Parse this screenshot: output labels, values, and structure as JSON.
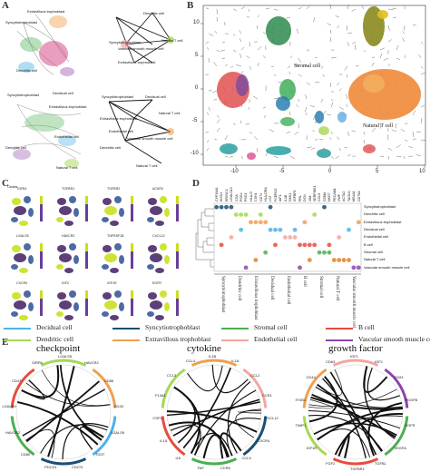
{
  "panels": {
    "A": "A",
    "B": "B",
    "C": "C",
    "D": "D",
    "E": "E"
  },
  "panel_a": {
    "net1": [
      "Extravillous trophoblast",
      "Syncytiotrophoblast",
      "Dendritic cell"
    ],
    "net2": [
      "Dendritic cell",
      "Syncytiotrophoblast",
      "Vascular smooth muscle cell",
      "Extravillous trophoblast",
      "Natural T cell"
    ],
    "net3": [
      "Syncytiotrophoblast",
      "Decidual cell",
      "Extravillous trophoblast",
      "Endothelial cell",
      "Dendritic cell",
      "Natural T cell"
    ],
    "net4": [
      "Syncytiotrophoblast",
      "Decidual cell",
      "Extravillous trophoblast",
      "Natural T cell",
      "Endothelial cell",
      "Vascular smooth muscle cell",
      "Dendritic cell",
      "Natural T cell"
    ]
  },
  "panel_b": {
    "label_stromal": "Stromal cell",
    "label_natural_t": "Natural T cell",
    "x_ticks": [
      "-10",
      "-5",
      "0",
      "5",
      "10"
    ],
    "y_ticks": [
      "10",
      "5",
      "0",
      "-5",
      "-10"
    ]
  },
  "panel_c": {
    "legend_title": "Cluster",
    "genes": [
      "TGFB1",
      "TGFBR1",
      "TGFBR2",
      "ACKR2",
      "LGALS9",
      "HAVCR2",
      "TNFRSF1B",
      "CXCL12",
      "CXCR4",
      "IGF2",
      "IGF1R",
      "EGFR"
    ]
  },
  "panel_d": {
    "columns": [
      "CYP19A1",
      "KISS1",
      "ERVW-1",
      "LGALS13",
      "CGA",
      "PSG4",
      "PSG1",
      "HLA-G",
      "CSH1",
      "CD74",
      "HLA-DRA",
      "LYZ",
      "FCER1G",
      "AIF1",
      "IL1B",
      "DKK1",
      "IGFBP1",
      "PRL",
      "DCN",
      "VIM",
      "SERPINE1",
      "CCL5",
      "GZMA",
      "NKG7",
      "PECAM1",
      "VWF",
      "ACTA2",
      "TAGLN",
      "MS4A1",
      "CD79A"
    ],
    "rows": [
      "Syncytiotrophoblast",
      "Dendritic cell",
      "Extravillous trophoblast",
      "Decidual cell",
      "Endothelial cell",
      "B cell",
      "Stromal cell",
      "Natural T cell",
      "Vascular smooth muscle cell"
    ],
    "groups": [
      "Syncytiotrophoblast",
      "Dendritic cell",
      "Extravillous trophoblast",
      "Decidual cell",
      "Endothelial cell",
      "B cell",
      "Stromal cell",
      "Natural T cell",
      "Vascular smooth muscle cell"
    ]
  },
  "legend": [
    {
      "label": "Decidual cell",
      "color": "#4db3e6"
    },
    {
      "label": "Syncytiotrophoblast",
      "color": "#1b4f72"
    },
    {
      "label": "Stromal cell",
      "color": "#4caf50"
    },
    {
      "label": "B cell",
      "color": "#e74c3c"
    },
    {
      "label": "Dendritic cell",
      "color": "#a6d854"
    },
    {
      "label": "Extravillous trophoblast",
      "color": "#f0a050"
    },
    {
      "label": "Endothelial cell",
      "color": "#f4a6a0"
    },
    {
      "label": "Vascular smooth muscle cell",
      "color": "#8e44ad"
    }
  ],
  "circos": [
    {
      "title": "checkpoint",
      "genes": [
        "LGALS9",
        "HAVCR2",
        "CD86",
        "CD28",
        "LGALS9",
        "TIGIT",
        "CD274",
        "PDCD1",
        "CD80",
        "HAVCR2",
        "LGALS9",
        "CD47",
        "SIRPA"
      ]
    },
    {
      "title": "cytokine",
      "genes": [
        "IL1B",
        "IL18",
        "CCL2",
        "CCR1",
        "CXCL12",
        "CXCR4",
        "CCL5",
        "CCR5",
        "TNF",
        "IL6",
        "IL15",
        "CSF1",
        "F13A1",
        "CCL3",
        "CCL4"
      ]
    },
    {
      "title": "growth factor",
      "genes": [
        "IGF1",
        "IGF2",
        "CD81",
        "PDGFB",
        "EGFR",
        "VEGFA",
        "TGFB1",
        "TGFBR1",
        "FGF2",
        "IGF1R",
        "TIMP1",
        "ITGB1",
        "CD44",
        "CD63"
      ]
    }
  ],
  "colors": {
    "stromal": "#27ae60",
    "trophoblast": "#2c5f8a",
    "decidual": "#f08a5d",
    "dendritic": "#8bc34a",
    "natural_t": "#e67e22",
    "endothelial": "#f4a6a0",
    "vsmc": "#b565a7",
    "bcell": "#d94f4f",
    "olive": "#8a8a20",
    "red": "#e23b3b"
  }
}
